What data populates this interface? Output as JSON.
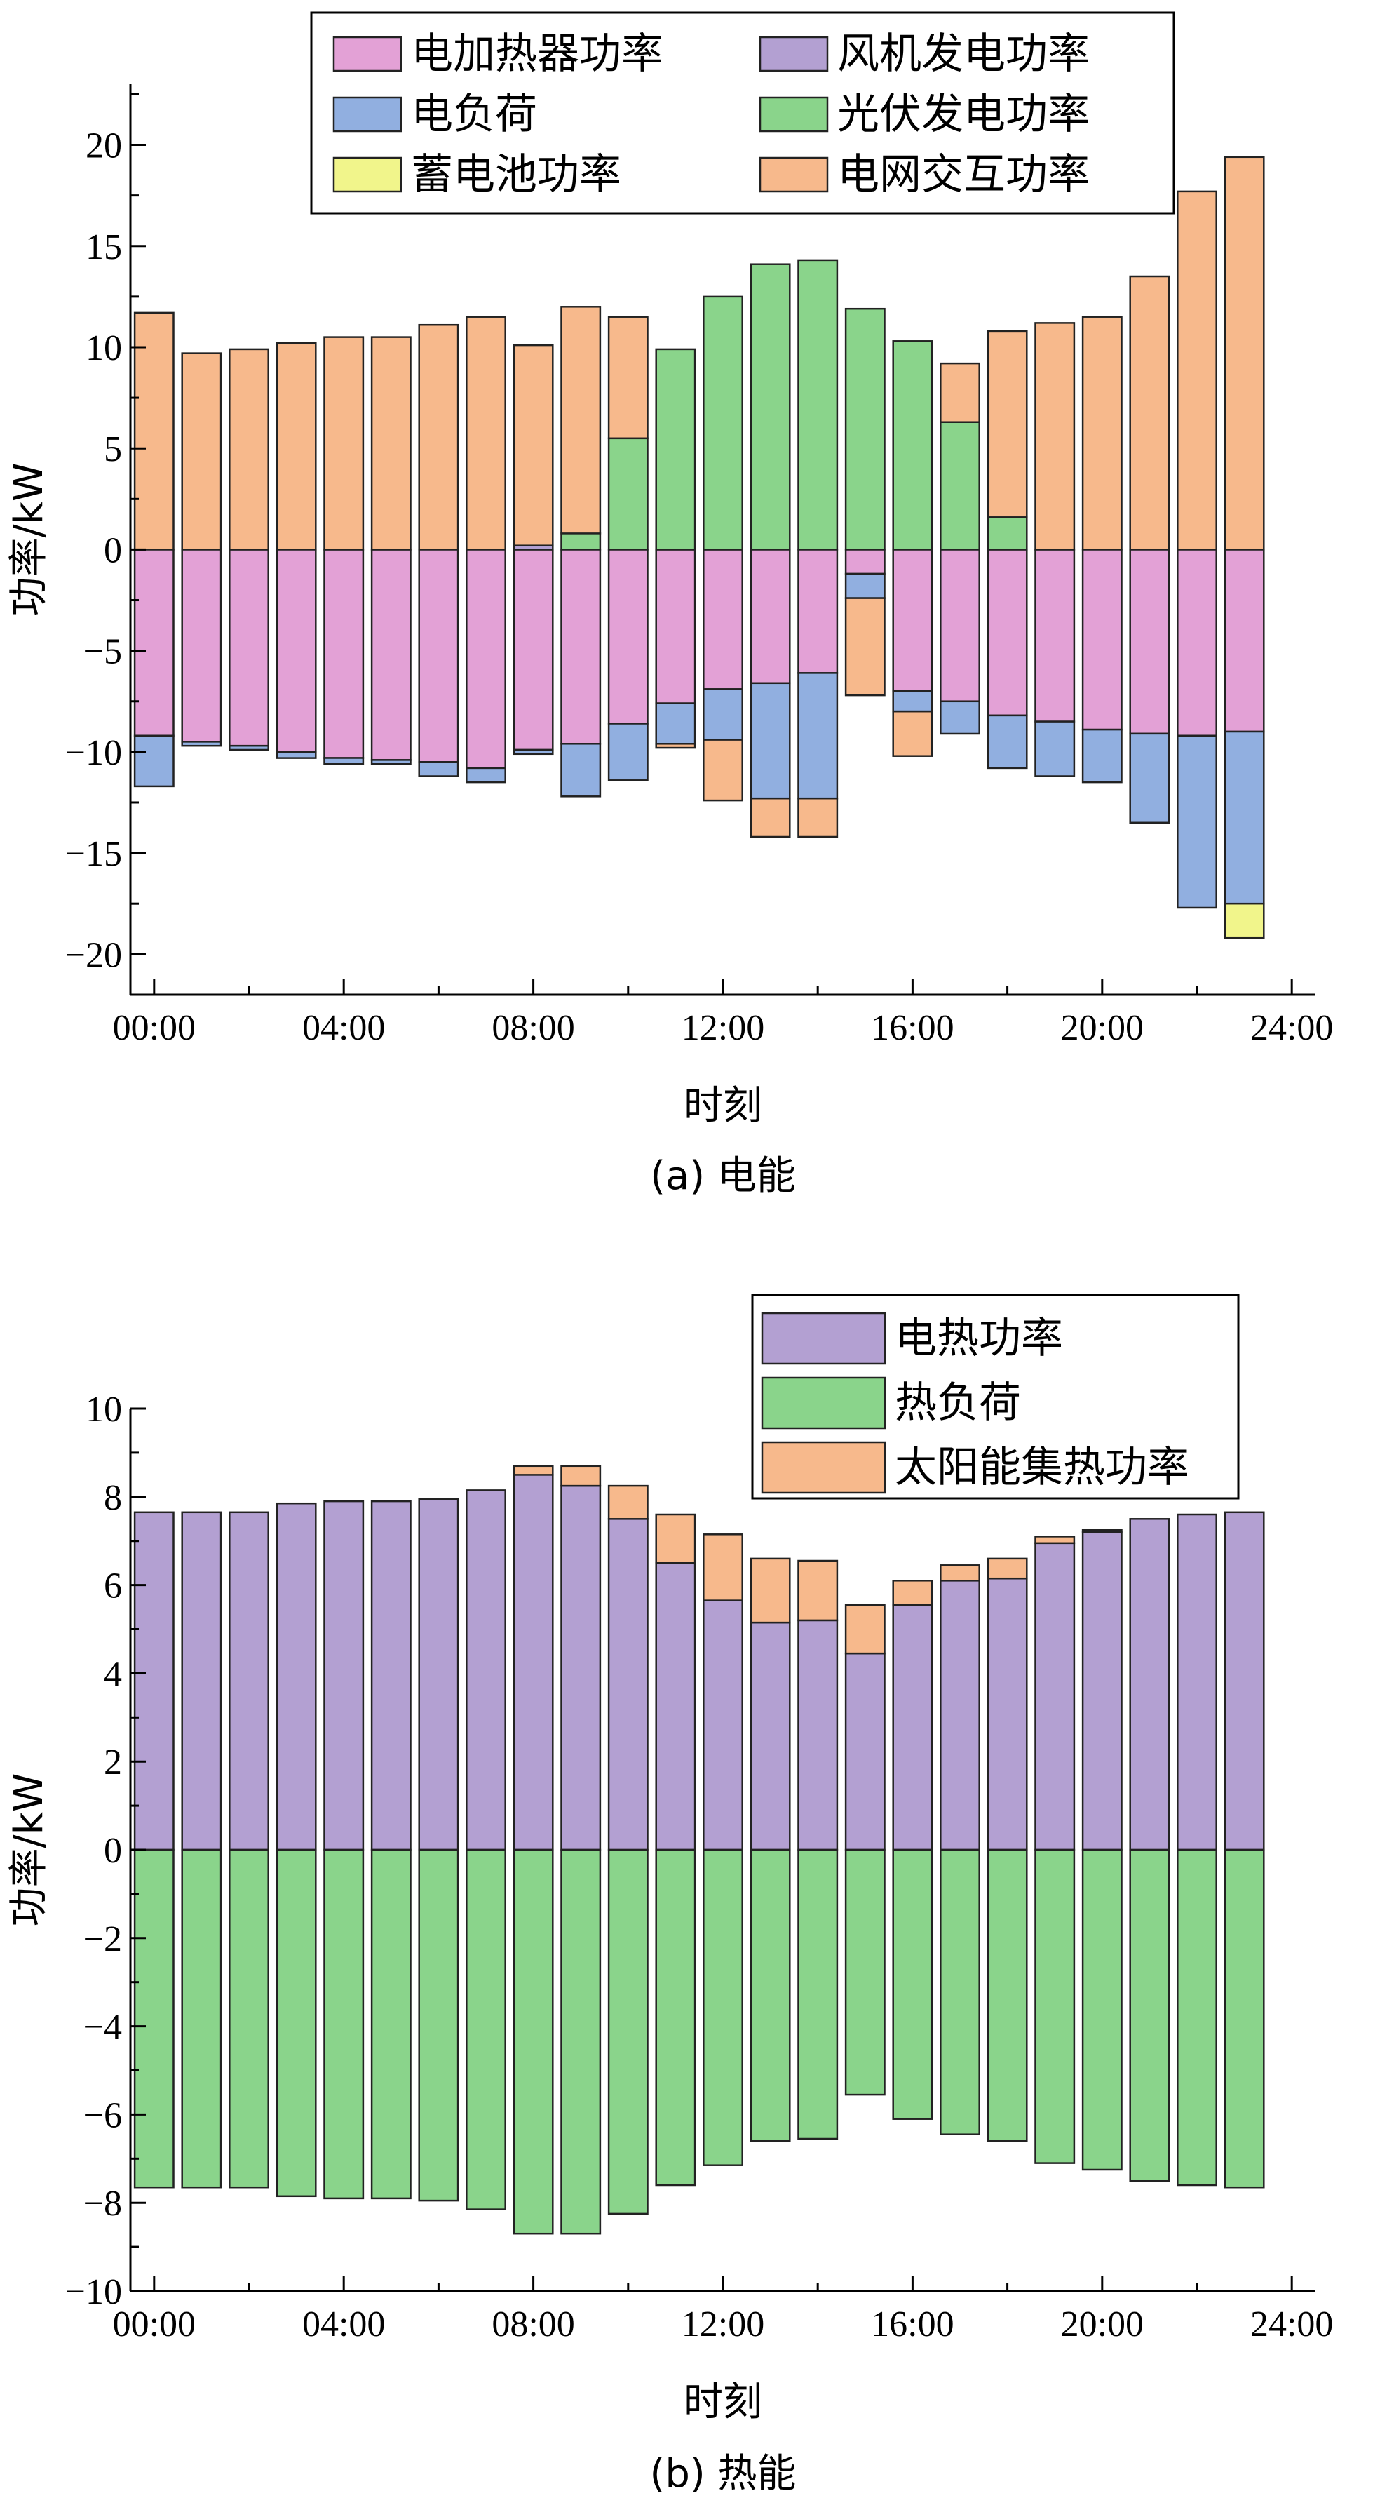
{
  "chart_data": [
    {
      "type": "bar",
      "stacked": true,
      "caption": "(a) 电能",
      "xlabel": "时刻",
      "ylabel": "功率/kW",
      "ylim": [
        -22,
        23
      ],
      "yticks": [
        -20,
        -15,
        -10,
        -5,
        0,
        5,
        10,
        15,
        20
      ],
      "ytick_labels": [
        "−20",
        "−15",
        "−10",
        "−5",
        "0",
        "5",
        "10",
        "15",
        "20"
      ],
      "xlim": [
        -0.5,
        24.5
      ],
      "xticks": [
        0,
        4,
        8,
        12,
        16,
        20,
        24
      ],
      "xtick_labels": [
        "00:00",
        "04:00",
        "08:00",
        "12:00",
        "16:00",
        "20:00",
        "24:00"
      ],
      "x": [
        0,
        1,
        2,
        3,
        4,
        5,
        6,
        7,
        8,
        9,
        10,
        11,
        12,
        13,
        14,
        15,
        16,
        17,
        18,
        19,
        20,
        21,
        22,
        23
      ],
      "legend": {
        "position": "top",
        "columns": 2
      },
      "series": [
        {
          "name": "电加热器功率",
          "color": "#e3a1d6",
          "values": [
            -9.2,
            -9.5,
            -9.7,
            -10.0,
            -10.3,
            -10.4,
            -10.5,
            -10.8,
            -9.9,
            -9.6,
            -8.6,
            -7.6,
            -6.9,
            -6.6,
            -6.1,
            -1.2,
            -7.0,
            -7.5,
            -8.2,
            -8.5,
            -8.9,
            -9.1,
            -9.2,
            -9.0
          ]
        },
        {
          "name": "风机发电功率",
          "color": "#b3a0d2",
          "values": [
            0,
            0,
            0,
            0,
            0,
            0,
            0,
            0,
            0.2,
            0,
            0,
            0,
            0,
            0,
            0,
            0,
            0,
            0,
            0,
            0,
            0,
            0,
            0,
            0
          ]
        },
        {
          "name": "电负荷",
          "color": "#91afe0",
          "values": [
            -2.5,
            -0.2,
            -0.2,
            -0.3,
            -0.3,
            -0.2,
            -0.7,
            -0.7,
            -0.2,
            -2.6,
            -2.8,
            -2.0,
            -2.5,
            -5.7,
            -6.2,
            -1.2,
            -1.0,
            -1.6,
            -2.6,
            -2.7,
            -2.6,
            -4.4,
            -8.5,
            -8.5
          ]
        },
        {
          "name": "光伏发电功率",
          "color": "#8ad48b",
          "values": [
            0,
            0,
            0,
            0,
            0,
            0,
            0,
            0,
            0,
            0.8,
            5.5,
            9.9,
            12.5,
            14.1,
            14.3,
            11.9,
            10.3,
            6.3,
            1.6,
            0,
            0,
            0,
            0,
            0
          ]
        },
        {
          "name": "蓄电池功率",
          "color": "#f1f58b",
          "values": [
            0,
            0,
            0,
            0,
            0,
            0,
            0,
            0,
            0,
            0,
            0,
            0,
            0,
            0,
            0,
            0,
            0,
            0,
            0,
            0,
            0,
            0,
            0,
            -1.7
          ]
        },
        {
          "name": "电网交互功率",
          "color": "#f7b98c",
          "values": [
            11.7,
            9.7,
            9.9,
            10.2,
            10.5,
            10.5,
            11.1,
            11.5,
            9.9,
            11.2,
            6.0,
            -0.2,
            -3.0,
            -1.9,
            -1.9,
            -4.8,
            -2.2,
            2.9,
            9.2,
            11.2,
            11.5,
            13.5,
            17.7,
            19.4
          ]
        }
      ]
    },
    {
      "type": "bar",
      "stacked": true,
      "caption": "(b) 热能",
      "xlabel": "时刻",
      "ylabel": "功率/kW",
      "ylim": [
        -10,
        10
      ],
      "yticks": [
        -10,
        -8,
        -6,
        -4,
        -2,
        0,
        2,
        4,
        6,
        8,
        10
      ],
      "ytick_labels": [
        "−10",
        "−8",
        "−6",
        "−4",
        "−2",
        "0",
        "2",
        "4",
        "6",
        "8",
        "10"
      ],
      "xlim": [
        -0.5,
        24.5
      ],
      "xticks": [
        0,
        4,
        8,
        12,
        16,
        20,
        24
      ],
      "xtick_labels": [
        "00:00",
        "04:00",
        "08:00",
        "12:00",
        "16:00",
        "20:00",
        "24:00"
      ],
      "x": [
        0,
        1,
        2,
        3,
        4,
        5,
        6,
        7,
        8,
        9,
        10,
        11,
        12,
        13,
        14,
        15,
        16,
        17,
        18,
        19,
        20,
        21,
        22,
        23
      ],
      "legend": {
        "position": "top-right",
        "columns": 1
      },
      "series": [
        {
          "name": "电热功率",
          "color": "#b3a0d2",
          "values": [
            7.65,
            7.65,
            7.65,
            7.85,
            7.9,
            7.9,
            7.95,
            8.15,
            8.5,
            8.25,
            7.5,
            6.5,
            5.65,
            5.15,
            5.2,
            4.45,
            5.55,
            6.1,
            6.15,
            6.95,
            7.2,
            7.5,
            7.6,
            7.65
          ]
        },
        {
          "name": "热负荷",
          "color": "#8ad48b",
          "values": [
            -7.65,
            -7.65,
            -7.65,
            -7.85,
            -7.9,
            -7.9,
            -7.95,
            -8.15,
            -8.7,
            -8.7,
            -8.25,
            -7.6,
            -7.15,
            -6.6,
            -6.55,
            -5.55,
            -6.1,
            -6.45,
            -6.6,
            -7.1,
            -7.25,
            -7.5,
            -7.6,
            -7.65
          ]
        },
        {
          "name": "太阳能集热功率",
          "color": "#f7b98c",
          "values": [
            0,
            0,
            0,
            0,
            0,
            0,
            0,
            0,
            0.2,
            0.45,
            0.75,
            1.1,
            1.5,
            1.45,
            1.35,
            1.1,
            0.55,
            0.35,
            0.45,
            0.15,
            0.05,
            0,
            0,
            0
          ]
        }
      ]
    }
  ]
}
